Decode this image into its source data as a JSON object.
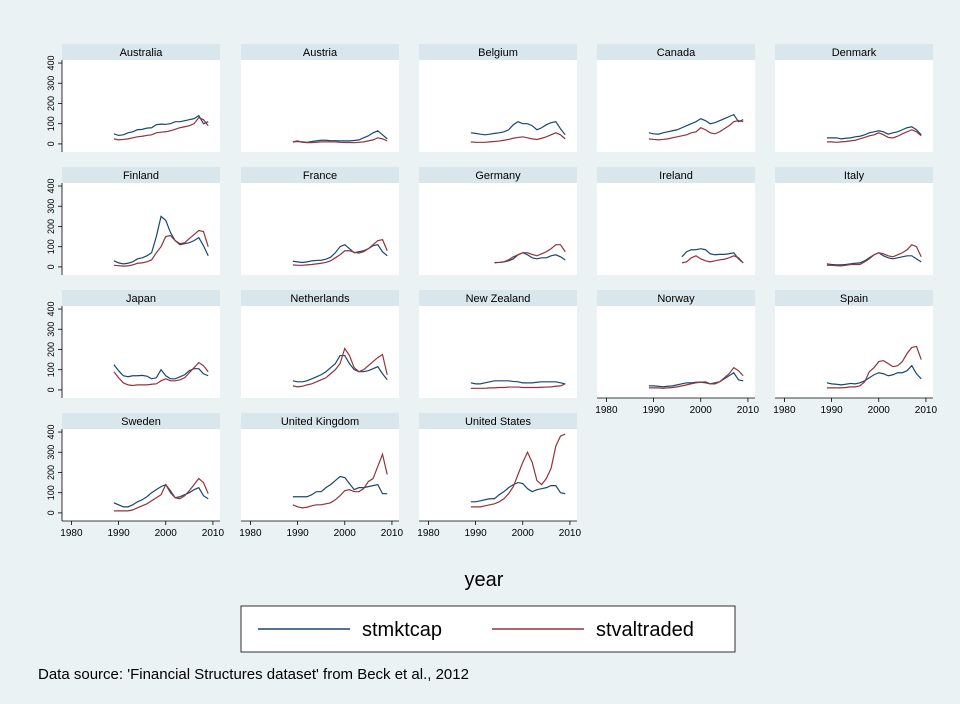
{
  "chart_data": {
    "type": "line",
    "x_label": "year",
    "note": "Data source: 'Financial Structures dataset' from Beck et al., 2012",
    "x": [
      1989,
      1990,
      1991,
      1992,
      1993,
      1994,
      1995,
      1996,
      1997,
      1998,
      1999,
      2000,
      2001,
      2002,
      2003,
      2004,
      2005,
      2006,
      2007,
      2008,
      2009
    ],
    "xlim": [
      1978,
      2011.5
    ],
    "xticks": [
      1980,
      1990,
      2000,
      2010
    ],
    "ylim": [
      -40,
      415
    ],
    "yticks": [
      0,
      100,
      200,
      300,
      400
    ],
    "series": [
      {
        "name": "stmktcap",
        "color": "#1a476f"
      },
      {
        "name": "stvaltraded",
        "color": "#90353b"
      }
    ],
    "panels": [
      {
        "title": "Australia",
        "series": [
          {
            "values": [
              50,
              42,
              45,
              55,
              60,
              70,
              72,
              78,
              80,
              95,
              98,
              97,
              100,
              110,
              110,
              115,
              120,
              125,
              140,
              100,
              110
            ]
          },
          {
            "values": [
              25,
              20,
              22,
              25,
              30,
              35,
              38,
              42,
              45,
              55,
              58,
              60,
              65,
              72,
              80,
              85,
              90,
              100,
              130,
              120,
              90
            ]
          }
        ]
      },
      {
        "title": "Austria",
        "series": [
          {
            "values": [
              10,
              12,
              10,
              8,
              12,
              15,
              18,
              18,
              16,
              16,
              15,
              15,
              15,
              17,
              20,
              30,
              40,
              55,
              65,
              45,
              25
            ]
          },
          {
            "values": [
              10,
              15,
              8,
              6,
              6,
              8,
              10,
              10,
              10,
              10,
              8,
              7,
              7,
              6,
              8,
              10,
              15,
              20,
              30,
              25,
              15
            ]
          }
        ]
      },
      {
        "title": "Belgium",
        "series": [
          {
            "values": [
              55,
              52,
              48,
              45,
              48,
              52,
              55,
              60,
              70,
              95,
              110,
              100,
              100,
              90,
              70,
              80,
              95,
              105,
              110,
              75,
              45
            ]
          },
          {
            "values": [
              10,
              8,
              8,
              8,
              10,
              12,
              14,
              18,
              22,
              28,
              32,
              35,
              30,
              25,
              22,
              28,
              35,
              45,
              55,
              45,
              25
            ]
          }
        ]
      },
      {
        "title": "Canada",
        "series": [
          {
            "values": [
              55,
              50,
              48,
              55,
              60,
              65,
              70,
              80,
              90,
              100,
              110,
              125,
              115,
              100,
              105,
              115,
              125,
              135,
              145,
              110,
              120
            ]
          },
          {
            "values": [
              25,
              22,
              20,
              22,
              25,
              30,
              35,
              40,
              45,
              55,
              60,
              80,
              70,
              55,
              50,
              60,
              75,
              90,
              110,
              115,
              110
            ]
          }
        ]
      },
      {
        "title": "Denmark",
        "series": [
          {
            "values": [
              30,
              30,
              30,
              25,
              28,
              30,
              35,
              38,
              45,
              55,
              60,
              65,
              60,
              48,
              55,
              60,
              70,
              80,
              85,
              70,
              45
            ]
          },
          {
            "values": [
              10,
              10,
              8,
              10,
              12,
              15,
              18,
              25,
              32,
              40,
              45,
              55,
              45,
              32,
              30,
              38,
              50,
              60,
              70,
              60,
              40
            ]
          }
        ]
      },
      {
        "title": "Finland",
        "series": [
          {
            "values": [
              30,
              20,
              15,
              18,
              25,
              40,
              45,
              55,
              70,
              150,
              250,
              230,
              170,
              130,
              110,
              115,
              120,
              130,
              145,
              105,
              55
            ]
          },
          {
            "values": [
              8,
              6,
              4,
              5,
              10,
              18,
              20,
              25,
              35,
              70,
              100,
              150,
              155,
              130,
              115,
              120,
              140,
              160,
              180,
              175,
              100
            ]
          }
        ]
      },
      {
        "title": "France",
        "series": [
          {
            "values": [
              28,
              25,
              22,
              25,
              30,
              32,
              33,
              38,
              48,
              70,
              100,
              110,
              90,
              70,
              75,
              80,
              90,
              105,
              110,
              75,
              55
            ]
          },
          {
            "values": [
              10,
              8,
              8,
              10,
              12,
              15,
              18,
              22,
              30,
              45,
              60,
              80,
              80,
              72,
              68,
              75,
              90,
              110,
              130,
              135,
              80
            ]
          }
        ]
      },
      {
        "title": "Germany",
        "series": [
          {
            "values": [
              null,
              null,
              null,
              null,
              null,
              22,
              22,
              25,
              30,
              40,
              60,
              70,
              60,
              45,
              40,
              45,
              45,
              55,
              60,
              50,
              35
            ]
          },
          {
            "values": [
              null,
              null,
              null,
              null,
              null,
              20,
              22,
              25,
              35,
              50,
              60,
              70,
              70,
              62,
              55,
              65,
              75,
              90,
              110,
              110,
              75
            ]
          }
        ]
      },
      {
        "title": "Ireland",
        "series": [
          {
            "values": [
              null,
              null,
              null,
              null,
              null,
              null,
              null,
              50,
              75,
              85,
              85,
              90,
              85,
              65,
              60,
              62,
              62,
              65,
              70,
              40,
              20
            ]
          },
          {
            "values": [
              null,
              null,
              null,
              null,
              null,
              null,
              null,
              20,
              25,
              45,
              55,
              40,
              30,
              25,
              30,
              35,
              38,
              45,
              55,
              45,
              20
            ]
          }
        ]
      },
      {
        "title": "Italy",
        "series": [
          {
            "values": [
              15,
              12,
              10,
              10,
              12,
              15,
              18,
              20,
              30,
              45,
              60,
              70,
              55,
              45,
              40,
              45,
              50,
              55,
              55,
              40,
              25
            ]
          },
          {
            "values": [
              8,
              8,
              6,
              5,
              8,
              12,
              12,
              12,
              25,
              40,
              60,
              70,
              65,
              55,
              50,
              60,
              70,
              85,
              110,
              100,
              50
            ]
          }
        ]
      },
      {
        "title": "Japan",
        "series": [
          {
            "values": [
              125,
              95,
              70,
              65,
              70,
              70,
              72,
              68,
              55,
              60,
              100,
              70,
              55,
              55,
              65,
              75,
              95,
              105,
              105,
              80,
              70
            ]
          },
          {
            "values": [
              90,
              60,
              35,
              25,
              22,
              25,
              25,
              25,
              28,
              30,
              45,
              55,
              45,
              45,
              50,
              60,
              85,
              110,
              135,
              120,
              90
            ]
          }
        ]
      },
      {
        "title": "Netherlands",
        "series": [
          {
            "values": [
              45,
              40,
              40,
              45,
              55,
              65,
              75,
              90,
              110,
              130,
              170,
              170,
              130,
              100,
              90,
              90,
              95,
              105,
              115,
              80,
              50
            ]
          },
          {
            "values": [
              20,
              15,
              18,
              25,
              30,
              40,
              50,
              60,
              80,
              100,
              130,
              205,
              170,
              110,
              90,
              100,
              120,
              140,
              160,
              175,
              75
            ]
          }
        ]
      },
      {
        "title": "New Zealand",
        "series": [
          {
            "values": [
              35,
              30,
              30,
              35,
              40,
              45,
              45,
              45,
              45,
              42,
              40,
              35,
              35,
              35,
              38,
              40,
              40,
              40,
              40,
              35,
              30
            ]
          },
          {
            "values": [
              8,
              8,
              8,
              8,
              10,
              10,
              12,
              12,
              14,
              14,
              14,
              12,
              12,
              12,
              12,
              13,
              14,
              15,
              18,
              20,
              30
            ]
          }
        ]
      },
      {
        "title": "Norway",
        "series": [
          {
            "values": [
              20,
              20,
              18,
              15,
              18,
              20,
              25,
              30,
              35,
              35,
              38,
              38,
              35,
              30,
              35,
              40,
              55,
              70,
              85,
              50,
              45
            ]
          },
          {
            "values": [
              10,
              10,
              10,
              8,
              10,
              12,
              15,
              20,
              25,
              30,
              35,
              38,
              40,
              30,
              30,
              40,
              60,
              80,
              110,
              95,
              70
            ]
          }
        ]
      },
      {
        "title": "Spain",
        "series": [
          {
            "values": [
              35,
              30,
              28,
              25,
              28,
              32,
              30,
              35,
              45,
              60,
              75,
              85,
              80,
              70,
              75,
              85,
              85,
              95,
              120,
              80,
              55
            ]
          },
          {
            "values": [
              10,
              10,
              10,
              10,
              12,
              15,
              15,
              20,
              40,
              90,
              110,
              140,
              145,
              130,
              115,
              120,
              140,
              180,
              210,
              215,
              150
            ]
          }
        ]
      },
      {
        "title": "Sweden",
        "series": [
          {
            "values": [
              50,
              40,
              30,
              30,
              40,
              55,
              65,
              80,
              100,
              115,
              130,
              140,
              100,
              75,
              80,
              90,
              100,
              115,
              125,
              85,
              70
            ]
          },
          {
            "values": [
              10,
              10,
              10,
              10,
              15,
              25,
              35,
              45,
              60,
              75,
              90,
              140,
              110,
              75,
              70,
              85,
              110,
              140,
              170,
              150,
              95
            ]
          }
        ]
      },
      {
        "title": "United Kingdom",
        "series": [
          {
            "values": [
              80,
              80,
              80,
              80,
              90,
              105,
              105,
              125,
              140,
              160,
              180,
              175,
              145,
              115,
              125,
              125,
              130,
              135,
              140,
              95,
              95
            ]
          },
          {
            "values": [
              40,
              30,
              25,
              28,
              35,
              40,
              40,
              45,
              50,
              65,
              85,
              110,
              115,
              105,
              105,
              120,
              155,
              170,
              230,
              290,
              190
            ]
          }
        ]
      },
      {
        "title": "United States",
        "series": [
          {
            "values": [
              55,
              55,
              60,
              65,
              70,
              70,
              90,
              105,
              125,
              140,
              150,
              145,
              120,
              105,
              115,
              120,
              125,
              135,
              135,
              100,
              95
            ]
          },
          {
            "values": [
              30,
              30,
              30,
              35,
              40,
              45,
              55,
              70,
              95,
              130,
              190,
              250,
              300,
              250,
              160,
              140,
              170,
              220,
              330,
              380,
              390
            ]
          }
        ]
      }
    ]
  }
}
